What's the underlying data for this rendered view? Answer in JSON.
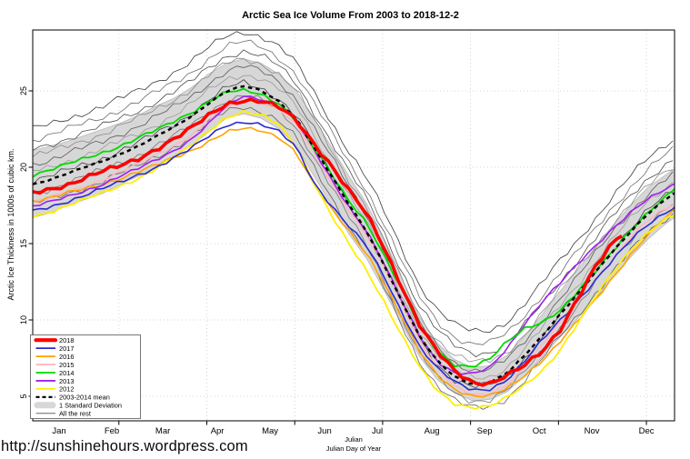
{
  "title": "Arctic Sea Ice Volume From 2003 to 2018-12-2",
  "footer": {
    "url": "http://sunshinehours.wordpress.com",
    "julian_line1": "Julian",
    "julian_line2": "Julian Day of Year"
  },
  "axes": {
    "ylabel": "Arctic Ice Thickness in 1000s of cubic km.",
    "y_ticks": [
      5,
      10,
      15,
      20,
      25
    ],
    "months": [
      {
        "label": "Jan",
        "day": 16
      },
      {
        "label": "Feb",
        "day": 46
      },
      {
        "label": "Mar",
        "day": 75
      },
      {
        "label": "Apr",
        "day": 106
      },
      {
        "label": "May",
        "day": 136
      },
      {
        "label": "Jun",
        "day": 167
      },
      {
        "label": "Jul",
        "day": 197
      },
      {
        "label": "Aug",
        "day": 228
      },
      {
        "label": "Sep",
        "day": 258
      },
      {
        "label": "Oct",
        "day": 289
      },
      {
        "label": "Nov",
        "day": 319
      },
      {
        "label": "Dec",
        "day": 350
      }
    ],
    "grid_days": [
      50,
      100,
      150,
      200,
      250,
      300,
      350
    ],
    "xlim": [
      1,
      366
    ],
    "ylim": [
      3.4,
      29.0
    ],
    "grid_style": "dotted"
  },
  "legend": {
    "position": "bottom-left",
    "items": [
      {
        "label": "2018",
        "swatch": "thick",
        "color": "#ff0000"
      },
      {
        "label": "2017",
        "swatch": "line",
        "color": "#2a2ad0"
      },
      {
        "label": "2016",
        "swatch": "line",
        "color": "#ffa200"
      },
      {
        "label": "2015",
        "swatch": "line",
        "color": "#ffb6c1"
      },
      {
        "label": "2014",
        "swatch": "line",
        "color": "#00d900"
      },
      {
        "label": "2013",
        "swatch": "line",
        "color": "#a020f0"
      },
      {
        "label": "2012",
        "swatch": "line",
        "color": "#ffee00"
      },
      {
        "label": "2003-2014 mean",
        "swatch": "dashed",
        "color": "#000000"
      },
      {
        "label": "1 Standard Deviation",
        "swatch": "band",
        "color": "#d7d7d7"
      },
      {
        "label": "All the rest",
        "swatch": "thin",
        "color": "#666666"
      }
    ]
  },
  "chart_data": {
    "type": "line",
    "xlabel": "Julian Day of Year",
    "ylabel": "Arctic Ice Thickness in 1000s of cubic km.",
    "title": "Arctic Sea Ice Volume From 2003 to 2018-12-2",
    "x_days": [
      1,
      11,
      21,
      31,
      41,
      51,
      61,
      71,
      81,
      91,
      101,
      111,
      121,
      131,
      141,
      151,
      161,
      171,
      181,
      191,
      201,
      211,
      221,
      231,
      241,
      251,
      261,
      271,
      281,
      291,
      301,
      311,
      321,
      331,
      341,
      351,
      361,
      366
    ],
    "series": [
      {
        "name": "2015",
        "color": "#ffb6c1",
        "width": 1.6,
        "wiggle": 0.08,
        "values": [
          17.7,
          18.0,
          18.4,
          18.8,
          19.2,
          19.7,
          20.2,
          20.8,
          21.4,
          22.1,
          23.0,
          23.9,
          24.4,
          24.3,
          23.8,
          22.8,
          20.9,
          19.0,
          17.2,
          15.6,
          13.4,
          11.0,
          8.7,
          6.9,
          5.7,
          5.0,
          5.1,
          5.8,
          7.0,
          8.4,
          9.8,
          11.2,
          12.6,
          14.0,
          15.4,
          16.5,
          17.3,
          17.6
        ]
      },
      {
        "name": "2016",
        "color": "#ffa200",
        "width": 1.6,
        "wiggle": 0.09,
        "values": [
          17.8,
          18.0,
          18.3,
          18.6,
          18.9,
          19.3,
          19.7,
          20.1,
          20.6,
          21.1,
          21.7,
          22.3,
          22.5,
          22.4,
          22.0,
          21.0,
          18.8,
          17.2,
          15.8,
          14.4,
          12.4,
          10.1,
          7.9,
          6.4,
          5.5,
          5.0,
          5.0,
          5.5,
          6.4,
          7.4,
          8.6,
          9.9,
          11.3,
          12.8,
          14.3,
          15.6,
          16.7,
          17.1
        ]
      },
      {
        "name": "2012",
        "color": "#ffee00",
        "width": 1.8,
        "wiggle": 0.09,
        "values": [
          16.8,
          17.1,
          17.5,
          17.9,
          18.3,
          18.8,
          19.3,
          19.9,
          20.6,
          21.4,
          22.4,
          23.3,
          23.6,
          23.4,
          22.8,
          21.4,
          19.0,
          16.8,
          14.9,
          13.2,
          11.2,
          9.0,
          6.9,
          5.3,
          4.5,
          4.3,
          4.4,
          4.9,
          5.7,
          6.7,
          8.1,
          9.8,
          11.5,
          13.1,
          14.6,
          15.8,
          16.6,
          16.9
        ]
      },
      {
        "name": "2017",
        "color": "#2a2ad0",
        "width": 1.6,
        "wiggle": 0.09,
        "values": [
          17.1,
          17.4,
          17.8,
          18.2,
          18.6,
          19.0,
          19.5,
          20.0,
          20.6,
          21.2,
          22.0,
          22.8,
          23.0,
          22.8,
          22.3,
          21.3,
          19.0,
          17.5,
          16.1,
          14.8,
          12.8,
          10.5,
          8.3,
          6.8,
          5.9,
          5.4,
          5.5,
          6.1,
          7.3,
          8.7,
          10.0,
          11.3,
          12.6,
          13.9,
          15.2,
          16.3,
          17.1,
          17.4
        ]
      },
      {
        "name": "2013",
        "color": "#a020f0",
        "width": 1.6,
        "wiggle": 0.08,
        "values": [
          17.4,
          17.7,
          18.1,
          18.5,
          18.9,
          19.4,
          19.9,
          20.5,
          21.1,
          21.8,
          22.8,
          24.0,
          24.7,
          24.5,
          24.0,
          23.0,
          21.1,
          19.2,
          17.4,
          15.8,
          13.6,
          11.2,
          9.0,
          7.3,
          6.5,
          6.4,
          6.9,
          8.2,
          9.8,
          11.2,
          12.4,
          13.7,
          14.9,
          16.0,
          17.0,
          17.9,
          18.6,
          18.9
        ]
      },
      {
        "name": "2014",
        "color": "#00d900",
        "width": 1.8,
        "wiggle": 0.09,
        "values": [
          19.5,
          19.8,
          20.2,
          20.6,
          21.0,
          21.4,
          21.9,
          22.4,
          23.0,
          23.6,
          24.3,
          24.9,
          25.0,
          24.8,
          24.2,
          23.1,
          21.2,
          19.5,
          17.8,
          16.4,
          14.2,
          11.9,
          9.6,
          8.0,
          7.1,
          6.9,
          7.4,
          8.6,
          9.5,
          9.9,
          10.6,
          11.8,
          13.2,
          14.6,
          15.9,
          17.0,
          18.0,
          18.6
        ]
      },
      {
        "name": "2003-2014 mean",
        "color": "#000000",
        "width": 2.5,
        "dash": "4.5,4",
        "wiggle": 0.04,
        "values": [
          18.9,
          19.2,
          19.6,
          20.0,
          20.4,
          20.9,
          21.4,
          22.0,
          22.6,
          23.3,
          24.2,
          25.0,
          25.3,
          25.0,
          24.3,
          23.2,
          21.3,
          19.4,
          17.5,
          15.8,
          13.6,
          11.2,
          8.9,
          7.3,
          6.3,
          5.8,
          5.9,
          6.5,
          7.7,
          9.0,
          10.4,
          11.7,
          13.1,
          14.5,
          15.8,
          17.0,
          17.9,
          18.3
        ]
      },
      {
        "name": "2018",
        "color": "#ff0000",
        "width": 3.6,
        "wiggle": 0.12,
        "x": [
          1,
          11,
          21,
          31,
          41,
          51,
          61,
          71,
          81,
          91,
          101,
          111,
          121,
          131,
          141,
          151,
          161,
          171,
          181,
          191,
          201,
          211,
          221,
          231,
          241,
          251,
          261,
          271,
          281,
          291,
          301,
          311,
          321,
          331,
          336
        ],
        "values": [
          18.3,
          18.6,
          18.9,
          19.3,
          19.7,
          20.1,
          20.6,
          21.2,
          21.8,
          22.5,
          23.4,
          24.2,
          24.4,
          24.3,
          23.9,
          23.1,
          21.6,
          20.1,
          18.4,
          16.9,
          14.7,
          12.2,
          9.7,
          7.9,
          6.6,
          5.9,
          5.9,
          6.4,
          7.0,
          7.9,
          9.4,
          11.5,
          13.5,
          15.0,
          15.5
        ]
      }
    ],
    "band": {
      "label": "1 Standard Deviation",
      "around": "2003-2014 mean",
      "color": "#d7d7d7",
      "edge_color": "#ababab",
      "delta": [
        2.2,
        2.2,
        2.1,
        2.1,
        2.1,
        2.0,
        2.0,
        2.0,
        1.9,
        1.9,
        1.9,
        1.8,
        1.8,
        1.8,
        1.8,
        1.8,
        1.9,
        1.9,
        1.9,
        1.8,
        1.7,
        1.5,
        1.3,
        1.2,
        1.1,
        1.1,
        1.1,
        1.2,
        1.3,
        1.4,
        1.5,
        1.6,
        1.7,
        1.7,
        1.7,
        1.7,
        1.6,
        1.6
      ]
    },
    "all_the_rest": {
      "label": "All the rest",
      "years_note": "unlabeled thin lines (2003-2011)",
      "width": 0.8,
      "colors": [
        "#3a3a3a",
        "#6e6e6e",
        "#4c4c4c",
        "#8a8a8a",
        "#5a5a5a",
        "#9a9a9a",
        "#424242",
        "#757575",
        "#606060"
      ],
      "winter_offsets": [
        3.6,
        2.9,
        2.3,
        1.8,
        1.3,
        0.8,
        0.2,
        -0.6,
        -1.3
      ],
      "summer_offsets": [
        3.4,
        2.6,
        2.0,
        1.4,
        0.9,
        0.4,
        -0.2,
        -1.1,
        -1.6
      ]
    }
  }
}
